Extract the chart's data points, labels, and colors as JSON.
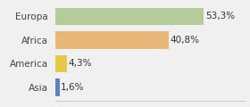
{
  "categories": [
    "Europa",
    "Africa",
    "America",
    "Asia"
  ],
  "values": [
    53.3,
    40.8,
    4.3,
    1.6
  ],
  "labels": [
    "53,3%",
    "40,8%",
    "4,3%",
    "1,6%"
  ],
  "bar_colors": [
    "#b5cc9a",
    "#e8b87a",
    "#e8c84a",
    "#6080c0"
  ],
  "background_color": "#f0f0f0",
  "xlim": [
    0,
    68
  ],
  "bar_height": 0.75,
  "label_fontsize": 7.5,
  "tick_fontsize": 7.5
}
